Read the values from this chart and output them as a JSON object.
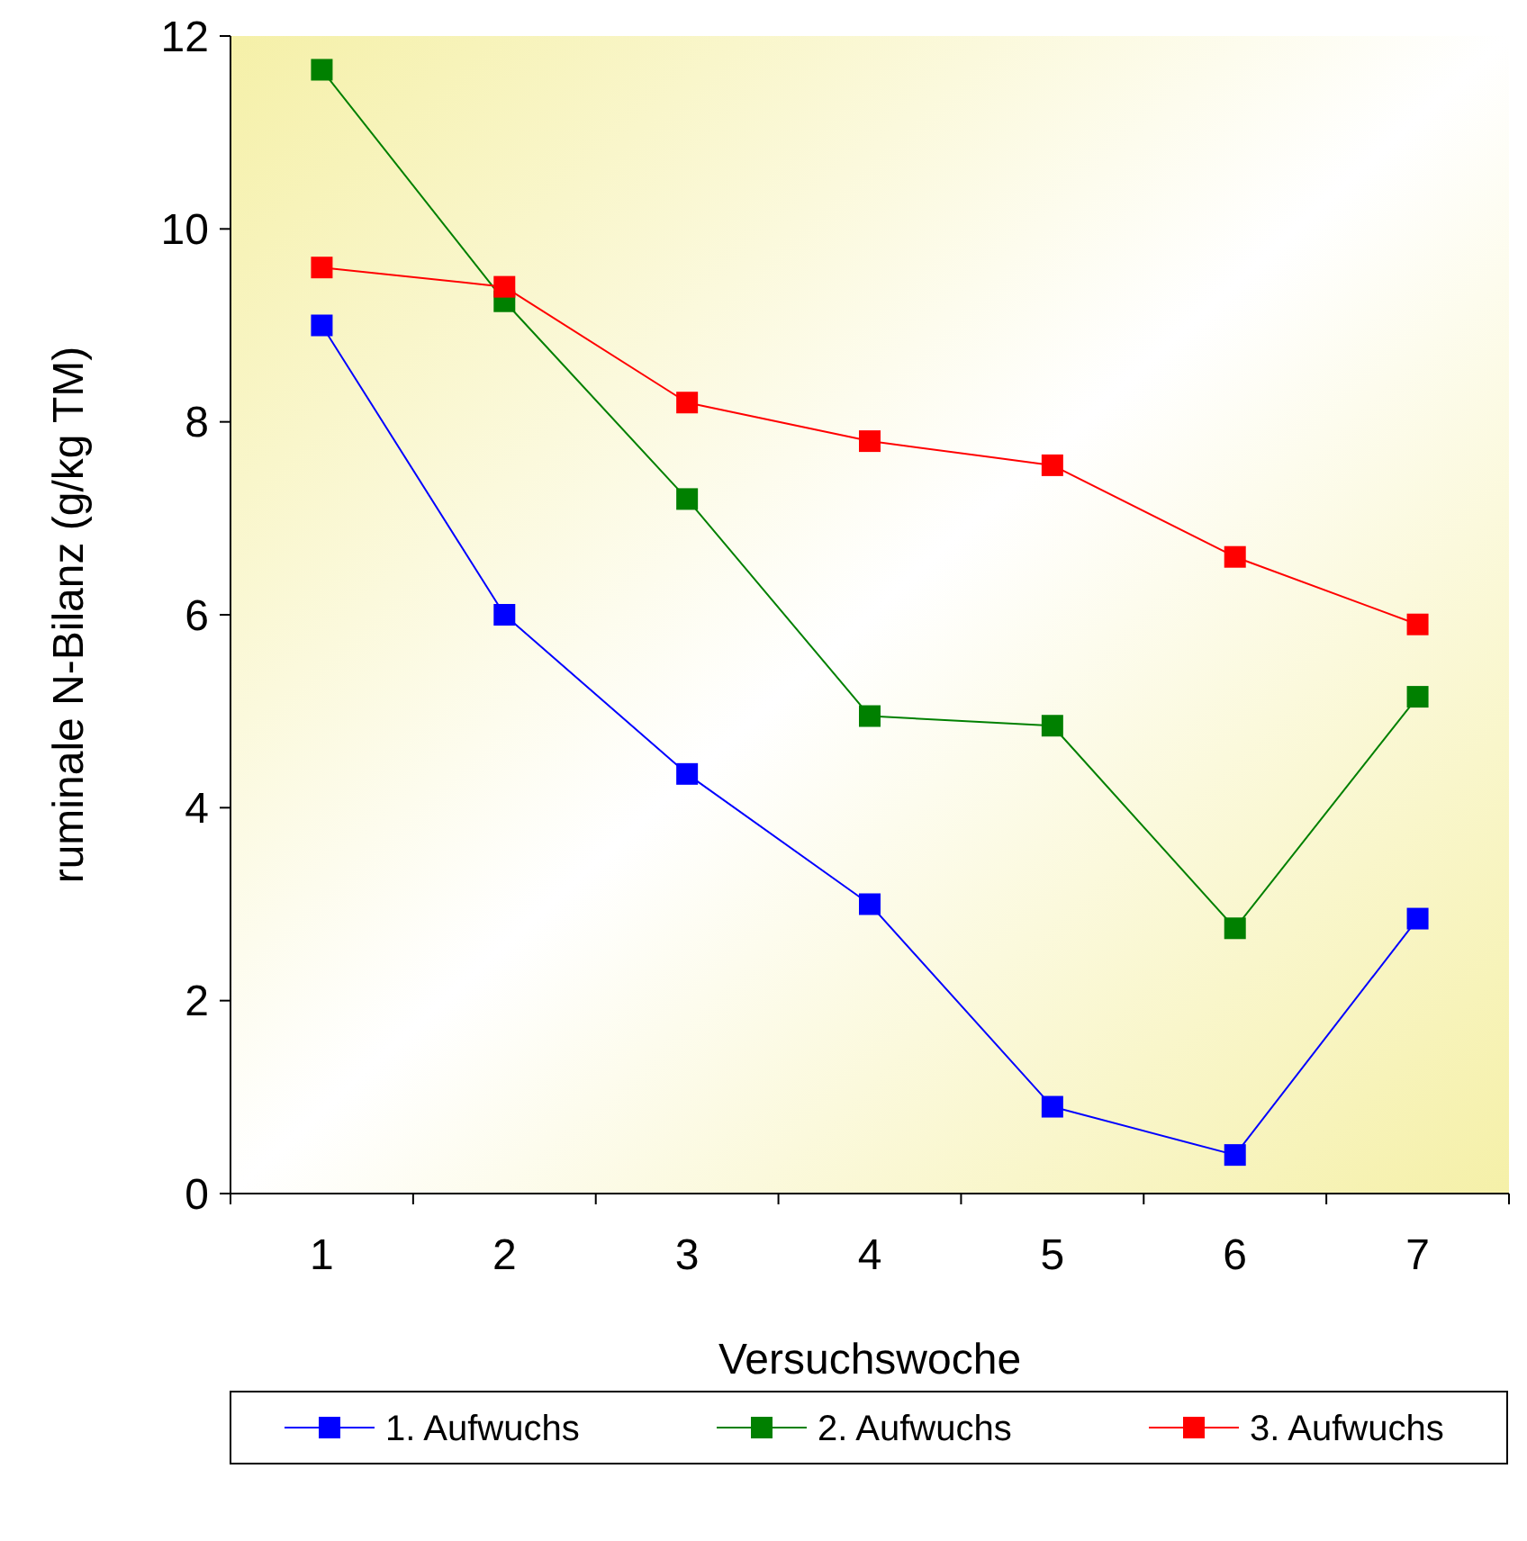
{
  "chart_data": {
    "type": "line",
    "xlabel": "Versuchswoche",
    "ylabel": "ruminale N-Bilanz (g/kg TM)",
    "categories": [
      "1",
      "2",
      "3",
      "4",
      "5",
      "6",
      "7"
    ],
    "series": [
      {
        "name": "1. Aufwuchs",
        "color": "#0000ff",
        "values": [
          9.0,
          6.0,
          4.35,
          3.0,
          0.9,
          0.4,
          2.85
        ]
      },
      {
        "name": "2. Aufwuchs",
        "color": "#008000",
        "values": [
          11.65,
          9.25,
          7.2,
          4.95,
          4.85,
          2.75,
          5.15
        ]
      },
      {
        "name": "3. Aufwuchs",
        "color": "#ff0000",
        "values": [
          9.6,
          9.4,
          8.2,
          7.8,
          7.55,
          6.6,
          5.9
        ]
      }
    ],
    "ylim": [
      0,
      12
    ],
    "yticks": [
      0,
      2,
      4,
      6,
      8,
      10,
      12
    ],
    "grid": false,
    "legend": "bottom",
    "marker": "square",
    "line_style": "solid"
  }
}
